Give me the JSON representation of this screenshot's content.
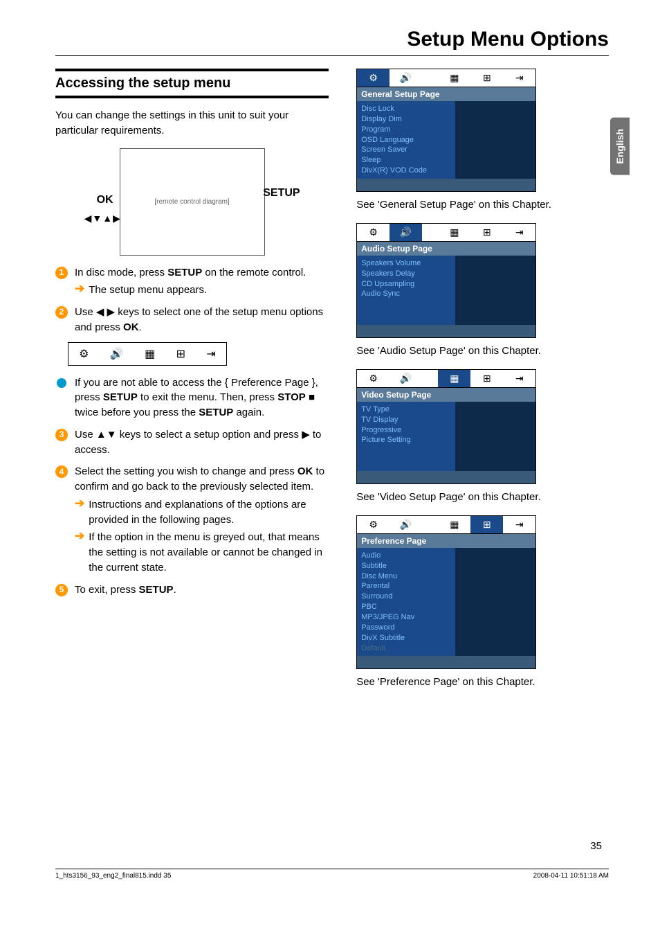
{
  "title": "Setup Menu Options",
  "language_tab": "English",
  "section_heading": "Accessing the setup menu",
  "intro": "You can change the settings in this unit to suit your particular requirements.",
  "remote_labels": {
    "ok": "OK",
    "setup": "SETUP",
    "arrows": "◀▼▲▶"
  },
  "steps": {
    "s1": {
      "num": "1",
      "html": "In disc mode, press <b>SETUP</b> on the remote control."
    },
    "s1sub": "The setup menu appears.",
    "s2": {
      "num": "2",
      "html": "Use ◀ ▶ keys to select one of the setup menu options and press <b>OK</b>."
    },
    "bullet": {
      "html": "If you are not able to access the { Preference Page }, press <b>SETUP</b> to exit the menu.  Then, press <b>STOP</b> ■ twice before you press the <b>SETUP</b> again."
    },
    "s3": {
      "num": "3",
      "html": "Use ▲▼ keys to select a setup option and press ▶ to access."
    },
    "s4": {
      "num": "4",
      "html": "Select the setting you wish to change and press <b>OK</b> to confirm and go back to the previously selected item."
    },
    "s4sub1": "Instructions and explanations of the options are provided in the following pages.",
    "s4sub2": "If the option in the menu is greyed out, that means the setting is not available or cannot be changed in the current state.",
    "s5": {
      "num": "5",
      "html": "To exit, press <b>SETUP</b>."
    }
  },
  "menus": {
    "general": {
      "title": "General Setup Page",
      "items": [
        "Disc Lock",
        "Display Dim",
        "Program",
        "OSD Language",
        "Screen Saver",
        "Sleep",
        "DivX(R) VOD Code"
      ],
      "active_tab": 0,
      "caption": "See 'General Setup Page' on this Chapter."
    },
    "audio": {
      "title": "Audio Setup Page",
      "items": [
        "Speakers Volume",
        "Speakers Delay",
        "CD Upsampling",
        "Audio Sync"
      ],
      "active_tab": 1,
      "caption": "See 'Audio Setup Page' on this Chapter."
    },
    "video": {
      "title": "Video Setup Page",
      "items": [
        "TV Type",
        "TV Display",
        "Progressive",
        "Picture Setting"
      ],
      "active_tab": 2,
      "caption": "See 'Video Setup Page' on this Chapter."
    },
    "preference": {
      "title": "Preference Page",
      "items": [
        "Audio",
        "Subtitle",
        "Disc Menu",
        "Parental",
        "Surround",
        "PBC",
        "MP3/JPEG Nav",
        "Password",
        "DivX Subtitle"
      ],
      "disabled": "Default",
      "active_tab": 3,
      "caption": "See 'Preference Page' on this Chapter."
    }
  },
  "tab_icons": [
    "⚙",
    "🔊",
    "▦",
    "⊞",
    "⇥"
  ],
  "page_number": "35",
  "footer_left": "1_hts3156_93_eng2_final815.indd   35",
  "footer_right": "2008-04-11   10:51:18 AM",
  "colors": {
    "step_badge": "#ff9800",
    "dot": "#0099cc",
    "menu_bg": "#1a4a8a",
    "menu_title_bg": "#5a7a9a",
    "menu_right": "#0d2a4a",
    "menu_item": "#7fbfff",
    "menu_footer": "#3a5a7a",
    "lang_tab": "#737272"
  }
}
